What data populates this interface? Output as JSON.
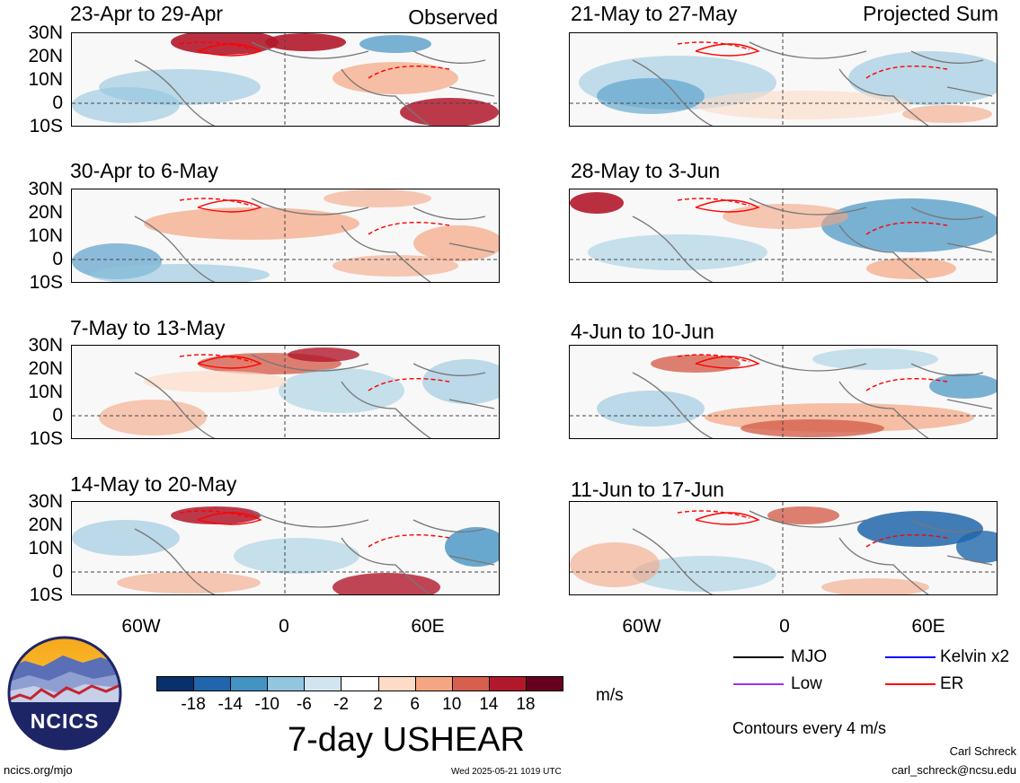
{
  "figure": {
    "observed_label": "Observed",
    "projected_label": "Projected Sum",
    "left_panels": [
      {
        "period": "23-Apr to 29-Apr"
      },
      {
        "period": "30-Apr to 6-May"
      },
      {
        "period": "7-May to 13-May"
      },
      {
        "period": "14-May to 20-May"
      }
    ],
    "right_panels": [
      {
        "period": "21-May to 27-May"
      },
      {
        "period": "28-May to 3-Jun"
      },
      {
        "period": "4-Jun to 10-Jun"
      },
      {
        "period": "11-Jun to 17-Jun"
      }
    ],
    "lat_labels": [
      "30N",
      "20N",
      "10N",
      "0",
      "10S"
    ],
    "lon_labels": [
      "60W",
      "0",
      "60E"
    ]
  },
  "colorbar": {
    "ticks": [
      "-18",
      "-14",
      "-10",
      "-6",
      "-2",
      "2",
      "6",
      "10",
      "14",
      "18"
    ],
    "colors": [
      "#08306b",
      "#2166ac",
      "#4393c3",
      "#92c5de",
      "#d1e5f0",
      "#ffffff",
      "#fddbc7",
      "#f4a582",
      "#d6604d",
      "#b2182b",
      "#67001f"
    ],
    "units": "m/s",
    "title": "7-day USHEAR"
  },
  "contour_key": {
    "items": [
      {
        "label": "MJO",
        "color": "#000000"
      },
      {
        "label": "Kelvin x2",
        "color": "#0000ff"
      },
      {
        "label": "Low",
        "color": "#9933ff"
      },
      {
        "label": "ER",
        "color": "#ff0000"
      }
    ],
    "note": "Contours every 4 m/s"
  },
  "footer": {
    "logo_text": "NCICS",
    "url": "ncics.org/mjo",
    "timestamp": "Wed 2025-05-21 1019 UTC",
    "author": "Carl Schreck",
    "email": "carl_schreck@ncsu.edu"
  }
}
